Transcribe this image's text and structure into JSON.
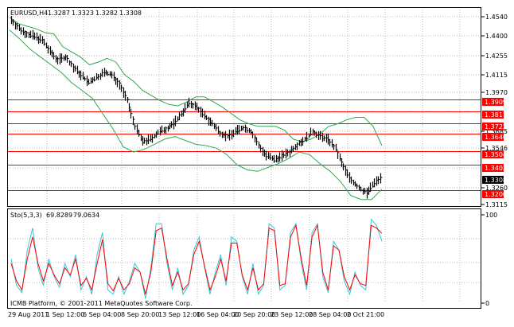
{
  "main_pane": {
    "symbol_label": "EURUSD,H4",
    "ohlc": [
      "1.3287",
      "1.3323",
      "1.3282",
      "1.3308"
    ],
    "price_ticks": [
      "1.4540",
      "1.4400",
      "1.4255",
      "1.4115",
      "1.3970",
      "1.3685",
      "1.3546",
      "1.3260",
      "1.3115"
    ],
    "level_labels": [
      "1.3909",
      "1.3817",
      "1.3722",
      "1.3640",
      "1.3504",
      "1.3403",
      "1.3200"
    ],
    "current_price": "1.3308",
    "level_color": "#ff0000",
    "band_color": "#2fa84f",
    "bar_color": "#000000"
  },
  "stoch_pane": {
    "label": "Sto(5,3,3)",
    "main_value": "69.8289",
    "signal_value": "79.0634",
    "ticks": [
      "100",
      "0"
    ],
    "main_color": "#39c7d9",
    "signal_color": "#ff0000"
  },
  "footer": {
    "copyright": "ICMB Platform, © 2001-2011 MetaQuotes Software Corp."
  },
  "time_axis": [
    "29 Aug 2011",
    "1 Sep 12:00",
    "6 Sep 04:00",
    "8 Sep 20:00",
    "13 Sep 12:00",
    "16 Sep 04:00",
    "20 Sep 20:00",
    "23 Sep 12:00",
    "28 Sep 04:00",
    "2 Oct 21:00"
  ],
  "chart_data": {
    "type": "line",
    "title": "EURUSD,H4",
    "price_levels": [
      1.3909,
      1.3817,
      1.3722,
      1.364,
      1.3504,
      1.3403,
      1.32
    ],
    "ylim": [
      1.3085,
      1.461
    ],
    "close": [
      1.453,
      1.446,
      1.442,
      1.44,
      1.437,
      1.428,
      1.422,
      1.424,
      1.416,
      1.41,
      1.404,
      1.408,
      1.412,
      1.41,
      1.403,
      1.39,
      1.37,
      1.358,
      1.36,
      1.365,
      1.368,
      1.372,
      1.38,
      1.388,
      1.385,
      1.378,
      1.372,
      1.365,
      1.362,
      1.366,
      1.369,
      1.366,
      1.355,
      1.347,
      1.344,
      1.347,
      1.35,
      1.356,
      1.36,
      1.366,
      1.362,
      1.36,
      1.352,
      1.338,
      1.328,
      1.322,
      1.318,
      1.326,
      1.331
    ],
    "upper_band": [
      1.455,
      1.45,
      1.448,
      1.446,
      1.443,
      1.442,
      1.432,
      1.428,
      1.424,
      1.418,
      1.42,
      1.423,
      1.42,
      1.41,
      1.405,
      1.398,
      1.394,
      1.39,
      1.387,
      1.386,
      1.389,
      1.393,
      1.393,
      1.389,
      1.385,
      1.38,
      1.375,
      1.372,
      1.37,
      1.37,
      1.37,
      1.367,
      1.36,
      1.358,
      1.36,
      1.364,
      1.37,
      1.372,
      1.375,
      1.377,
      1.377,
      1.37,
      1.355
    ],
    "lower_band": [
      1.445,
      1.438,
      1.43,
      1.424,
      1.418,
      1.412,
      1.404,
      1.398,
      1.392,
      1.38,
      1.368,
      1.354,
      1.35,
      1.352,
      1.356,
      1.36,
      1.362,
      1.359,
      1.356,
      1.355,
      1.353,
      1.348,
      1.34,
      1.336,
      1.335,
      1.338,
      1.341,
      1.345,
      1.35,
      1.348,
      1.341,
      1.335,
      1.327,
      1.316,
      1.313,
      1.313,
      1.321
    ],
    "stochastic": {
      "ylim": [
        0,
        100
      ],
      "main": [
        50,
        20,
        12,
        60,
        85,
        40,
        20,
        50,
        30,
        18,
        45,
        30,
        55,
        15,
        30,
        10,
        55,
        80,
        15,
        10,
        30,
        10,
        25,
        45,
        35,
        5,
        40,
        90,
        90,
        45,
        15,
        40,
        10,
        20,
        60,
        75,
        40,
        10,
        35,
        55,
        20,
        75,
        70,
        30,
        10,
        45,
        10,
        20,
        90,
        85,
        15,
        20,
        80,
        90,
        45,
        15,
        80,
        90,
        30,
        12,
        70,
        60,
        25,
        10,
        35,
        20,
        15,
        95,
        88,
        70
      ],
      "signal": [
        45,
        25,
        15,
        50,
        75,
        45,
        25,
        45,
        32,
        22,
        40,
        32,
        50,
        20,
        28,
        15,
        45,
        72,
        22,
        14,
        28,
        15,
        22,
        40,
        35,
        10,
        35,
        82,
        85,
        50,
        20,
        35,
        15,
        22,
        55,
        70,
        42,
        15,
        30,
        50,
        25,
        68,
        68,
        32,
        15,
        40,
        15,
        22,
        85,
        82,
        20,
        22,
        75,
        88,
        50,
        20,
        75,
        88,
        35,
        15,
        65,
        60,
        30,
        15,
        32,
        22,
        20,
        88,
        85,
        79
      ]
    }
  }
}
